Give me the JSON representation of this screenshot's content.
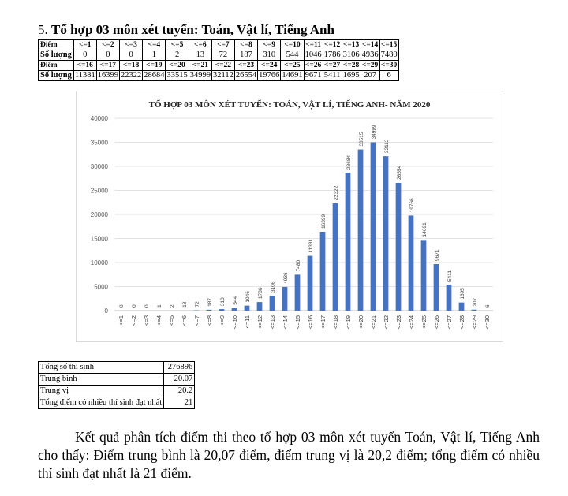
{
  "heading": {
    "number": "5.",
    "title": "Tổ hợp 03 môn xét tuyển: Toán, Vật lí, Tiếng Anh"
  },
  "score_table": {
    "rows": [
      {
        "label": "Điểm",
        "kind": "hdr",
        "cells": [
          "<=1",
          "<=2",
          "<=3",
          "<=4",
          "<=5",
          "<=6",
          "<=7",
          "<=8",
          "<=9",
          "<=10",
          "<=11",
          "<=12",
          "<=13",
          "<=14",
          "<=15"
        ]
      },
      {
        "label": "Số lượng",
        "kind": "val",
        "cells": [
          "0",
          "0",
          "0",
          "1",
          "2",
          "13",
          "72",
          "187",
          "310",
          "544",
          "1046",
          "1786",
          "3106",
          "4936",
          "7480"
        ]
      },
      {
        "label": "Điểm",
        "kind": "hdr",
        "cells": [
          "<=16",
          "<=17",
          "<=18",
          "<=19",
          "<=20",
          "<=21",
          "<=22",
          "<=23",
          "<=24",
          "<=25",
          "<=26",
          "<=27",
          "<=28",
          "<=29",
          "<=30"
        ]
      },
      {
        "label": "Số lượng",
        "kind": "val",
        "cells": [
          "11381",
          "16399",
          "22322",
          "28684",
          "33515",
          "34999",
          "32112",
          "26554",
          "19766",
          "14691",
          "9671",
          "5411",
          "1695",
          "207",
          "6"
        ]
      }
    ]
  },
  "chart_data": {
    "type": "bar",
    "title": "TỔ HỢP 03 MÔN XÉT TUYỂN: TOÁN, VẬT LÍ, TIẾNG ANH- NĂM 2020",
    "categories": [
      "<=1",
      "<=2",
      "<=3",
      "<=4",
      "<=5",
      "<=6",
      "<=7",
      "<=8",
      "<=9",
      "<=10",
      "<=11",
      "<=12",
      "<=13",
      "<=14",
      "<=15",
      "<=16",
      "<=17",
      "<=18",
      "<=19",
      "<=20",
      "<=21",
      "<=22",
      "<=23",
      "<=24",
      "<=25",
      "<=26",
      "<=27",
      "<=28",
      "<=29",
      "<=30"
    ],
    "values": [
      0,
      0,
      0,
      1,
      2,
      13,
      72,
      187,
      310,
      544,
      1046,
      1786,
      3106,
      4936,
      7480,
      11381,
      16399,
      22322,
      28684,
      33515,
      34999,
      32112,
      26554,
      19766,
      14691,
      9671,
      5411,
      1695,
      207,
      6
    ],
    "ylim": [
      0,
      40000
    ],
    "yticks": [
      0,
      5000,
      10000,
      15000,
      20000,
      25000,
      30000,
      35000,
      40000
    ],
    "grid": true,
    "bar_color": "#4472c4",
    "data_labels": true
  },
  "stats_table": {
    "rows": [
      {
        "label": "Tổng số thí sinh",
        "value": "276896"
      },
      {
        "label": "Trung bình",
        "value": "20.07"
      },
      {
        "label": "Trung vị",
        "value": "20.2"
      },
      {
        "label": "Tổng điểm có nhiều thí sinh đạt nhất",
        "value": "21"
      }
    ]
  },
  "paragraph": "Kết quả phân tích điểm thi theo tổ hợp 03 môn xét tuyển Toán, Vật lí, Tiếng Anh cho thấy: Điểm trung bình là 20,07 điểm, điểm trung vị là 20,2 điểm; tổng điểm có nhiều thí sinh đạt nhất là 21 điểm."
}
